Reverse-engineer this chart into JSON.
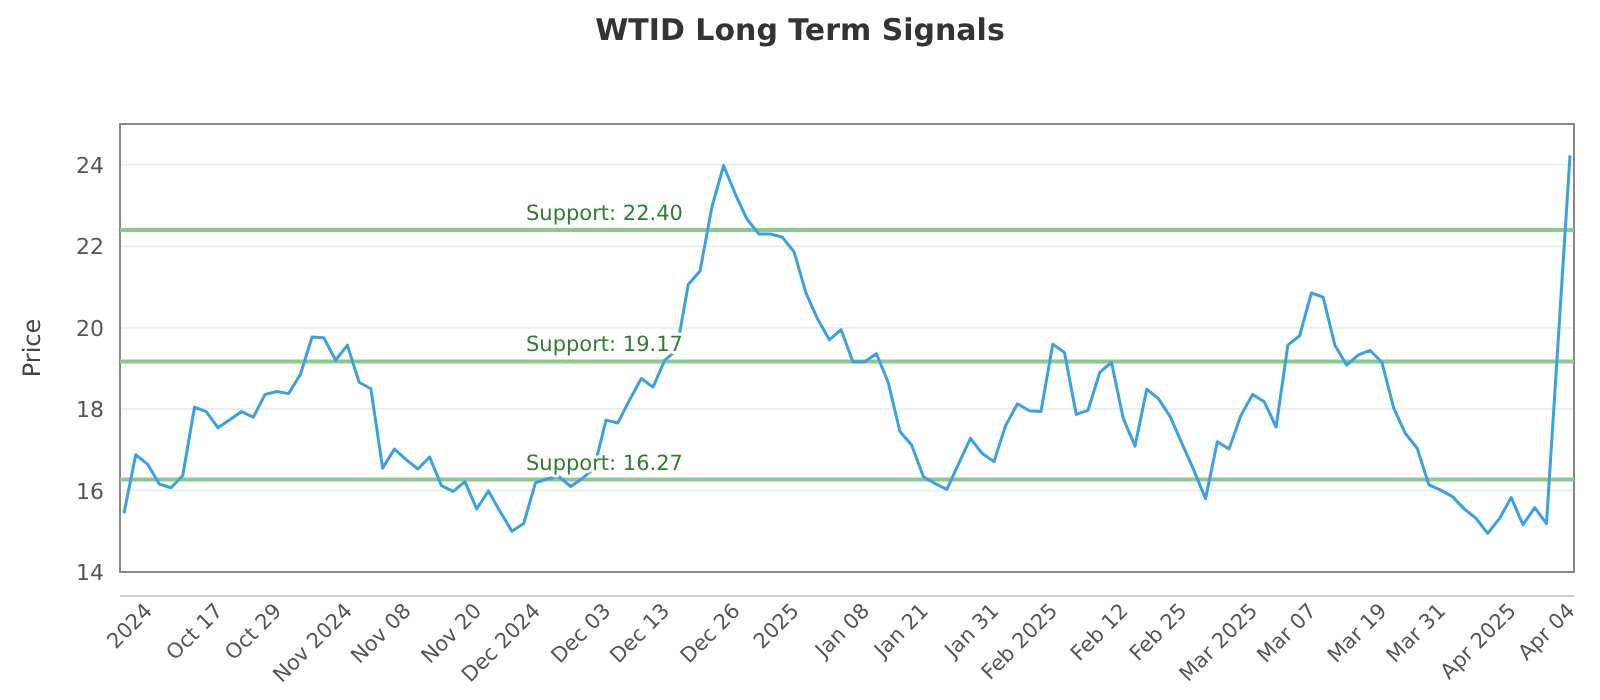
{
  "chart_data": {
    "type": "line",
    "title": "WTID Long Term Signals",
    "ylabel": "Price",
    "categories": [
      null,
      null,
      "2024",
      null,
      null,
      null,
      null,
      null,
      "Oct 17",
      null,
      null,
      null,
      null,
      "Oct 29",
      null,
      null,
      null,
      null,
      null,
      "Nov 2024",
      null,
      null,
      null,
      null,
      "Nov 08",
      null,
      null,
      null,
      null,
      null,
      "Nov 20",
      null,
      null,
      null,
      null,
      "Dec 2024",
      null,
      null,
      null,
      null,
      null,
      "Dec 03",
      null,
      null,
      null,
      null,
      "Dec 13",
      null,
      null,
      null,
      null,
      null,
      "Dec 26",
      null,
      null,
      null,
      null,
      "2025",
      null,
      null,
      null,
      null,
      null,
      "Jan 08",
      null,
      null,
      null,
      null,
      "Jan 21",
      null,
      null,
      null,
      null,
      null,
      "Jan 31",
      null,
      null,
      null,
      null,
      "Feb 2025",
      null,
      null,
      null,
      null,
      null,
      "Feb 12",
      null,
      null,
      null,
      null,
      "Feb 25",
      null,
      null,
      null,
      null,
      null,
      "Mar 2025",
      null,
      null,
      null,
      null,
      "Mar 07",
      null,
      null,
      null,
      null,
      null,
      "Mar 19",
      null,
      null,
      null,
      null,
      "Mar 31",
      null,
      null,
      null,
      null,
      null,
      "Apr 2025",
      null,
      null,
      null,
      null,
      "Apr 04"
    ],
    "series": [
      {
        "color": "#3ba1e3",
        "values": [
          15.44,
          16.88,
          16.65,
          16.16,
          16.07,
          16.37,
          18.05,
          17.94,
          17.54,
          17.74,
          17.94,
          17.8,
          18.36,
          18.43,
          18.38,
          18.85,
          19.77,
          19.75,
          19.2,
          19.57,
          18.66,
          18.5,
          16.55,
          17.02,
          16.76,
          16.53,
          16.82,
          16.12,
          15.98,
          16.22,
          15.55,
          15.99,
          15.48,
          15.0,
          15.19,
          16.19,
          16.29,
          16.34,
          16.1,
          16.3,
          16.55,
          17.73,
          17.66,
          18.22,
          18.75,
          18.54,
          19.2,
          19.44,
          21.06,
          21.39,
          22.95,
          23.98,
          23.28,
          22.66,
          22.3,
          22.3,
          22.22,
          21.86,
          20.86,
          20.21,
          19.7,
          19.95,
          19.16,
          19.16,
          19.36,
          18.66,
          17.45,
          17.12,
          16.34,
          16.17,
          16.03,
          16.66,
          17.28,
          16.91,
          16.71,
          17.6,
          18.13,
          17.96,
          17.94,
          19.59,
          19.39,
          17.87,
          17.97,
          18.9,
          19.15,
          17.77,
          17.09,
          18.49,
          18.25,
          17.81,
          17.15,
          16.5,
          15.8,
          17.2,
          17.02,
          17.84,
          18.36,
          18.18,
          17.56,
          19.57,
          19.8,
          20.85,
          20.75,
          19.57,
          19.08,
          19.33,
          19.44,
          19.15,
          18.03,
          17.4,
          17.04,
          16.14,
          16.01,
          15.85,
          15.55,
          15.32,
          14.95,
          15.31,
          15.83,
          15.16,
          15.58,
          15.19,
          19.71,
          24.23
        ]
      }
    ],
    "ylim": [
      14,
      25
    ],
    "yticks": [
      14,
      16,
      18,
      20,
      22,
      24
    ],
    "grid": "y",
    "marker": "none",
    "line_style": "solid",
    "ref_lines": [
      {
        "axis": "y",
        "value": 22.4,
        "label": "Support: 22.40",
        "color": "#8cc98c"
      },
      {
        "axis": "y",
        "value": 19.17,
        "label": "Support: 19.17",
        "color": "#8cc98c"
      },
      {
        "axis": "y",
        "value": 16.27,
        "label": "Support: 16.27",
        "color": "#8cc98c"
      }
    ]
  }
}
